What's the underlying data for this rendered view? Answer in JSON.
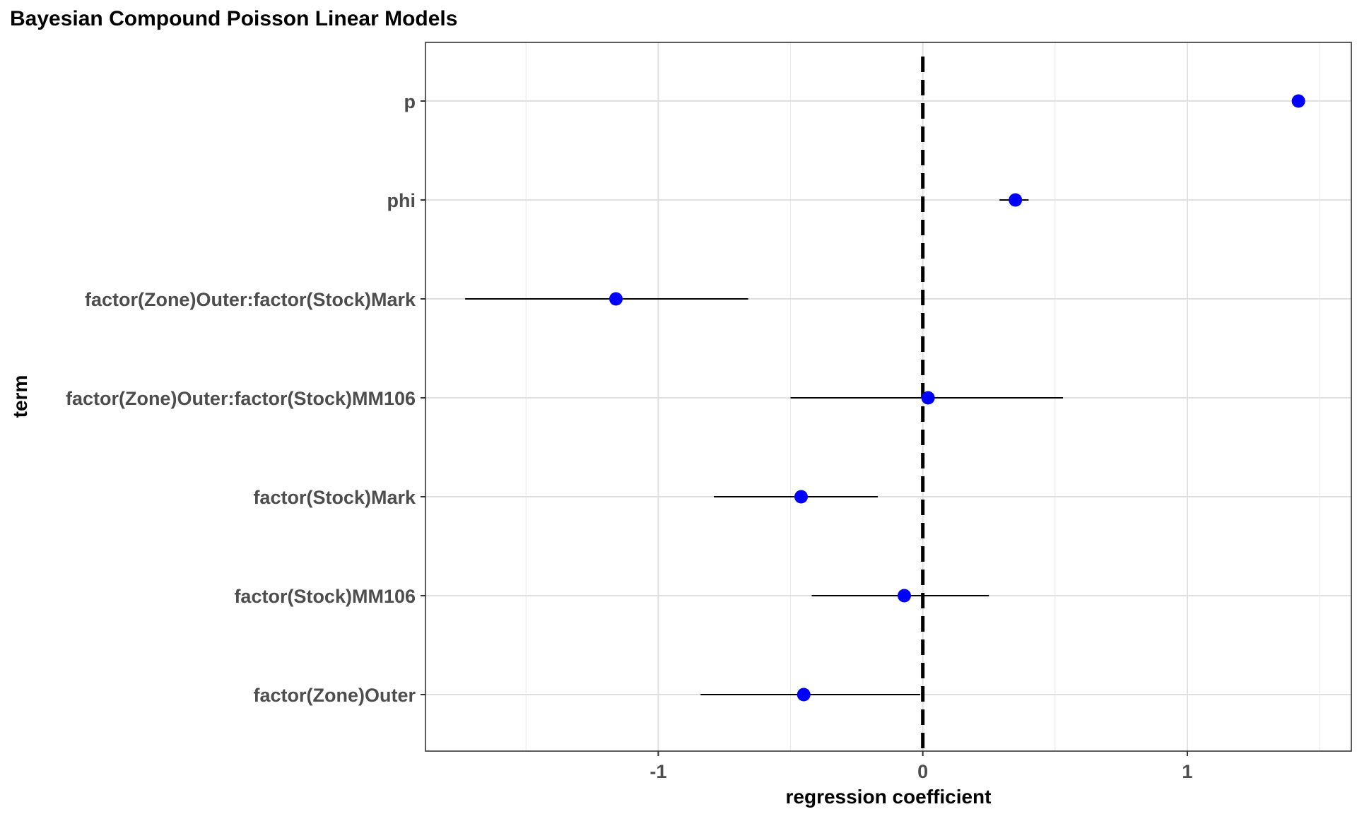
{
  "chart_data": {
    "type": "scatter",
    "subtype": "coefficient-plot",
    "title": "Bayesian Compound Poisson Linear Models",
    "xlabel": "regression coefficient",
    "ylabel": "term",
    "xlim": [
      -1.88,
      1.62
    ],
    "x_ticks": [
      -1,
      0,
      1
    ],
    "x_tick_labels": [
      "-1",
      "0",
      "1"
    ],
    "reference_line": {
      "x": 0,
      "style": "dashed"
    },
    "grid": true,
    "point_color": "#0000ff",
    "terms": [
      {
        "term": "p",
        "estimate": 1.42,
        "low": 1.4,
        "high": 1.44
      },
      {
        "term": "phi",
        "estimate": 0.35,
        "low": 0.29,
        "high": 0.4
      },
      {
        "term": "factor(Zone)Outer:factor(Stock)Mark",
        "estimate": -1.16,
        "low": -1.73,
        "high": -0.66
      },
      {
        "term": "factor(Zone)Outer:factor(Stock)MM106",
        "estimate": 0.02,
        "low": -0.5,
        "high": 0.53
      },
      {
        "term": "factor(Stock)Mark",
        "estimate": -0.46,
        "low": -0.79,
        "high": -0.17
      },
      {
        "term": "factor(Stock)MM106",
        "estimate": -0.07,
        "low": -0.42,
        "high": 0.25
      },
      {
        "term": "factor(Zone)Outer",
        "estimate": -0.45,
        "low": -0.84,
        "high": -0.01
      }
    ]
  }
}
